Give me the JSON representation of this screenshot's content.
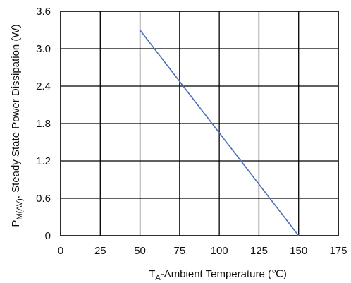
{
  "chart_data": {
    "type": "line",
    "title": "",
    "xlabel": {
      "main": "T",
      "sub": "A",
      "rest": "-Ambient Temperature (℃)"
    },
    "ylabel": {
      "main": "P",
      "sub": "M(AV)",
      "rest": ", Steady State Power Dissipation (W)"
    },
    "xlim": [
      0,
      175
    ],
    "ylim": [
      0,
      3.6
    ],
    "x_ticks": [
      "0",
      "25",
      "50",
      "75",
      "100",
      "125",
      "150",
      "175"
    ],
    "y_ticks": [
      "0",
      "0.6",
      "1.2",
      "1.8",
      "2.4",
      "3.0",
      "3.6"
    ],
    "grid": true,
    "series": [
      {
        "color": "#4a6fb5",
        "x": [
          50,
          150
        ],
        "y": [
          3.3,
          0
        ]
      }
    ]
  }
}
